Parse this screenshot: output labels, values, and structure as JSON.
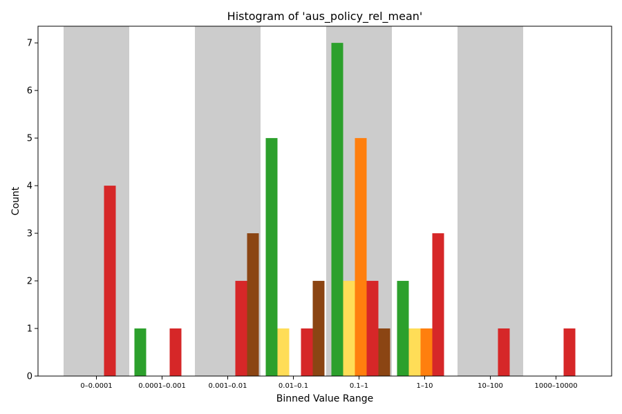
{
  "chart_data": {
    "type": "bar",
    "title": "Histogram of 'aus_policy_rel_mean'",
    "xlabel": "Binned Value Range",
    "ylabel": "Count",
    "categories": [
      "0–0.0001",
      "0.0001–0.001",
      "0.001–0.01",
      "0.01–0.1",
      "0.1–1",
      "1–10",
      "10–100",
      "1000–10000"
    ],
    "ylim": [
      0,
      7.35
    ],
    "yticks": [
      0,
      1,
      2,
      3,
      4,
      5,
      6,
      7
    ],
    "grid": false,
    "alternating_band_color": "#cccccc",
    "series": [
      {
        "color": "#2ca02c",
        "values": [
          0,
          1,
          0,
          5,
          7,
          2,
          0,
          0
        ]
      },
      {
        "color": "#ffdd57",
        "values": [
          0,
          0,
          0,
          1,
          2,
          1,
          0,
          0
        ]
      },
      {
        "color": "#ff7f0e",
        "values": [
          0,
          0,
          0,
          0,
          5,
          1,
          0,
          0
        ]
      },
      {
        "color": "#d62728",
        "values": [
          4,
          1,
          2,
          1,
          2,
          3,
          1,
          1
        ]
      },
      {
        "color": "#8b4513",
        "values": [
          0,
          0,
          3,
          2,
          1,
          0,
          0,
          0
        ]
      }
    ]
  }
}
